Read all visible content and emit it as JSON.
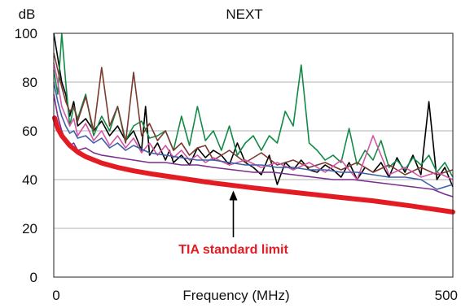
{
  "chart_data": {
    "type": "line",
    "title": "NEXT",
    "ylabel": "dB",
    "xlabel": "Frequency (MHz)",
    "xlim": [
      0,
      500
    ],
    "ylim": [
      0,
      100
    ],
    "x_ticks": [
      "0",
      "500"
    ],
    "y_ticks": [
      "0",
      "20",
      "40",
      "60",
      "80",
      "100"
    ],
    "grid": "horizontal",
    "annotation": "TIA standard limit",
    "colors": {
      "limit": "#e31b23",
      "black": "#000000",
      "green": "#128a45",
      "brown": "#7a3b2e",
      "pink": "#d455a8",
      "blue": "#3d5fa8",
      "purple": "#7b2d8e",
      "grid": "#b0b0b0",
      "frame": "#222222"
    },
    "limit_line": {
      "x": [
        1,
        5,
        10,
        20,
        30,
        40,
        60,
        80,
        100,
        125,
        150,
        175,
        200,
        250,
        300,
        350,
        400,
        450,
        500
      ],
      "y": [
        65.3,
        61.0,
        58.0,
        54.0,
        51.3,
        49.4,
        46.8,
        45.0,
        43.6,
        42.2,
        41.0,
        39.8,
        38.6,
        36.6,
        34.8,
        33.0,
        31.3,
        29.1,
        26.7
      ]
    },
    "series": [
      {
        "color": "black",
        "x": [
          0,
          5,
          10,
          15,
          20,
          25,
          30,
          40,
          50,
          60,
          70,
          80,
          90,
          100,
          110,
          115,
          120,
          130,
          140,
          145,
          150,
          160,
          170,
          180,
          190,
          200,
          210,
          220,
          230,
          240,
          250,
          260,
          270,
          280,
          290,
          300,
          310,
          320,
          330,
          340,
          350,
          360,
          370,
          380,
          390,
          400,
          410,
          420,
          430,
          440,
          450,
          460,
          470,
          480,
          490,
          500
        ],
        "y": [
          100,
          90,
          80,
          75,
          66,
          72,
          62,
          65,
          60,
          64,
          58,
          62,
          56,
          60,
          52,
          70,
          50,
          55,
          48,
          52,
          47,
          50,
          46,
          53,
          49,
          52,
          50,
          46,
          55,
          47,
          45,
          42,
          50,
          38,
          47,
          44,
          48,
          44,
          43,
          46,
          44,
          41,
          47,
          40,
          45,
          43,
          47,
          41,
          49,
          43,
          50,
          42,
          72,
          40,
          45,
          37
        ]
      },
      {
        "color": "green",
        "x": [
          0,
          5,
          10,
          15,
          20,
          25,
          30,
          40,
          50,
          60,
          70,
          80,
          90,
          100,
          110,
          120,
          130,
          140,
          150,
          160,
          170,
          180,
          190,
          200,
          210,
          220,
          230,
          240,
          250,
          260,
          270,
          280,
          290,
          300,
          310,
          320,
          330,
          340,
          350,
          360,
          370,
          380,
          390,
          400,
          410,
          420,
          430,
          440,
          450,
          460,
          470,
          480,
          490,
          500
        ],
        "y": [
          85,
          75,
          100,
          80,
          62,
          70,
          65,
          75,
          58,
          66,
          60,
          70,
          56,
          62,
          64,
          57,
          58,
          60,
          52,
          66,
          54,
          70,
          56,
          60,
          52,
          62,
          50,
          55,
          58,
          52,
          58,
          55,
          68,
          62,
          87,
          55,
          52,
          48,
          50,
          47,
          61,
          46,
          52,
          48,
          56,
          45,
          48,
          44,
          49,
          46,
          50,
          43,
          47,
          41
        ]
      },
      {
        "color": "brown",
        "x": [
          0,
          5,
          10,
          15,
          20,
          25,
          30,
          40,
          50,
          60,
          70,
          80,
          90,
          100,
          110,
          120,
          130,
          140,
          150,
          160,
          170,
          180,
          190,
          200,
          220,
          240,
          260,
          280,
          300,
          320,
          340,
          360,
          380,
          400,
          420,
          440,
          460,
          480,
          500
        ],
        "y": [
          92,
          85,
          78,
          72,
          68,
          70,
          64,
          74,
          60,
          86,
          62,
          70,
          55,
          84,
          58,
          63,
          56,
          60,
          52,
          55,
          50,
          53,
          54,
          48,
          52,
          47,
          51,
          46,
          48,
          45,
          47,
          44,
          47,
          43,
          46,
          42,
          45,
          42,
          44
        ]
      },
      {
        "color": "pink",
        "x": [
          0,
          5,
          10,
          15,
          20,
          25,
          30,
          40,
          50,
          60,
          70,
          80,
          90,
          100,
          110,
          120,
          130,
          140,
          150,
          160,
          170,
          180,
          190,
          200,
          220,
          240,
          260,
          280,
          300,
          320,
          340,
          360,
          380,
          400,
          420,
          440,
          460,
          480,
          500
        ],
        "y": [
          88,
          80,
          70,
          66,
          62,
          65,
          58,
          63,
          56,
          60,
          54,
          58,
          53,
          57,
          51,
          55,
          50,
          54,
          49,
          52,
          48,
          50,
          47,
          49,
          46,
          48,
          45,
          47,
          44,
          47,
          43,
          48,
          40,
          58,
          42,
          45,
          41,
          43,
          40
        ]
      },
      {
        "color": "blue",
        "x": [
          0,
          5,
          10,
          15,
          20,
          25,
          30,
          40,
          50,
          60,
          70,
          80,
          90,
          100,
          120,
          140,
          160,
          180,
          200,
          220,
          240,
          260,
          280,
          300,
          320,
          340,
          360,
          380,
          400,
          420,
          440,
          460,
          480,
          500
        ],
        "y": [
          80,
          72,
          66,
          62,
          59,
          60,
          57,
          58,
          55,
          57,
          53,
          55,
          52,
          54,
          51,
          50,
          49,
          48,
          48,
          47,
          46,
          46,
          45,
          45,
          44,
          44,
          43,
          43,
          42,
          41,
          41,
          40,
          36,
          38
        ]
      },
      {
        "color": "purple",
        "x": [
          0,
          5,
          10,
          15,
          20,
          25,
          30,
          40,
          50,
          60,
          80,
          100,
          120,
          140,
          160,
          180,
          200,
          225,
          250,
          275,
          300,
          325,
          350,
          375,
          400,
          425,
          450,
          475,
          490,
          500
        ],
        "y": [
          75,
          66,
          60,
          56,
          54,
          55,
          52,
          53,
          51,
          50,
          49,
          48,
          47,
          47,
          46,
          46,
          45,
          44,
          43,
          43,
          42,
          41,
          40,
          40,
          39,
          38,
          37,
          36,
          34,
          33
        ]
      }
    ]
  }
}
